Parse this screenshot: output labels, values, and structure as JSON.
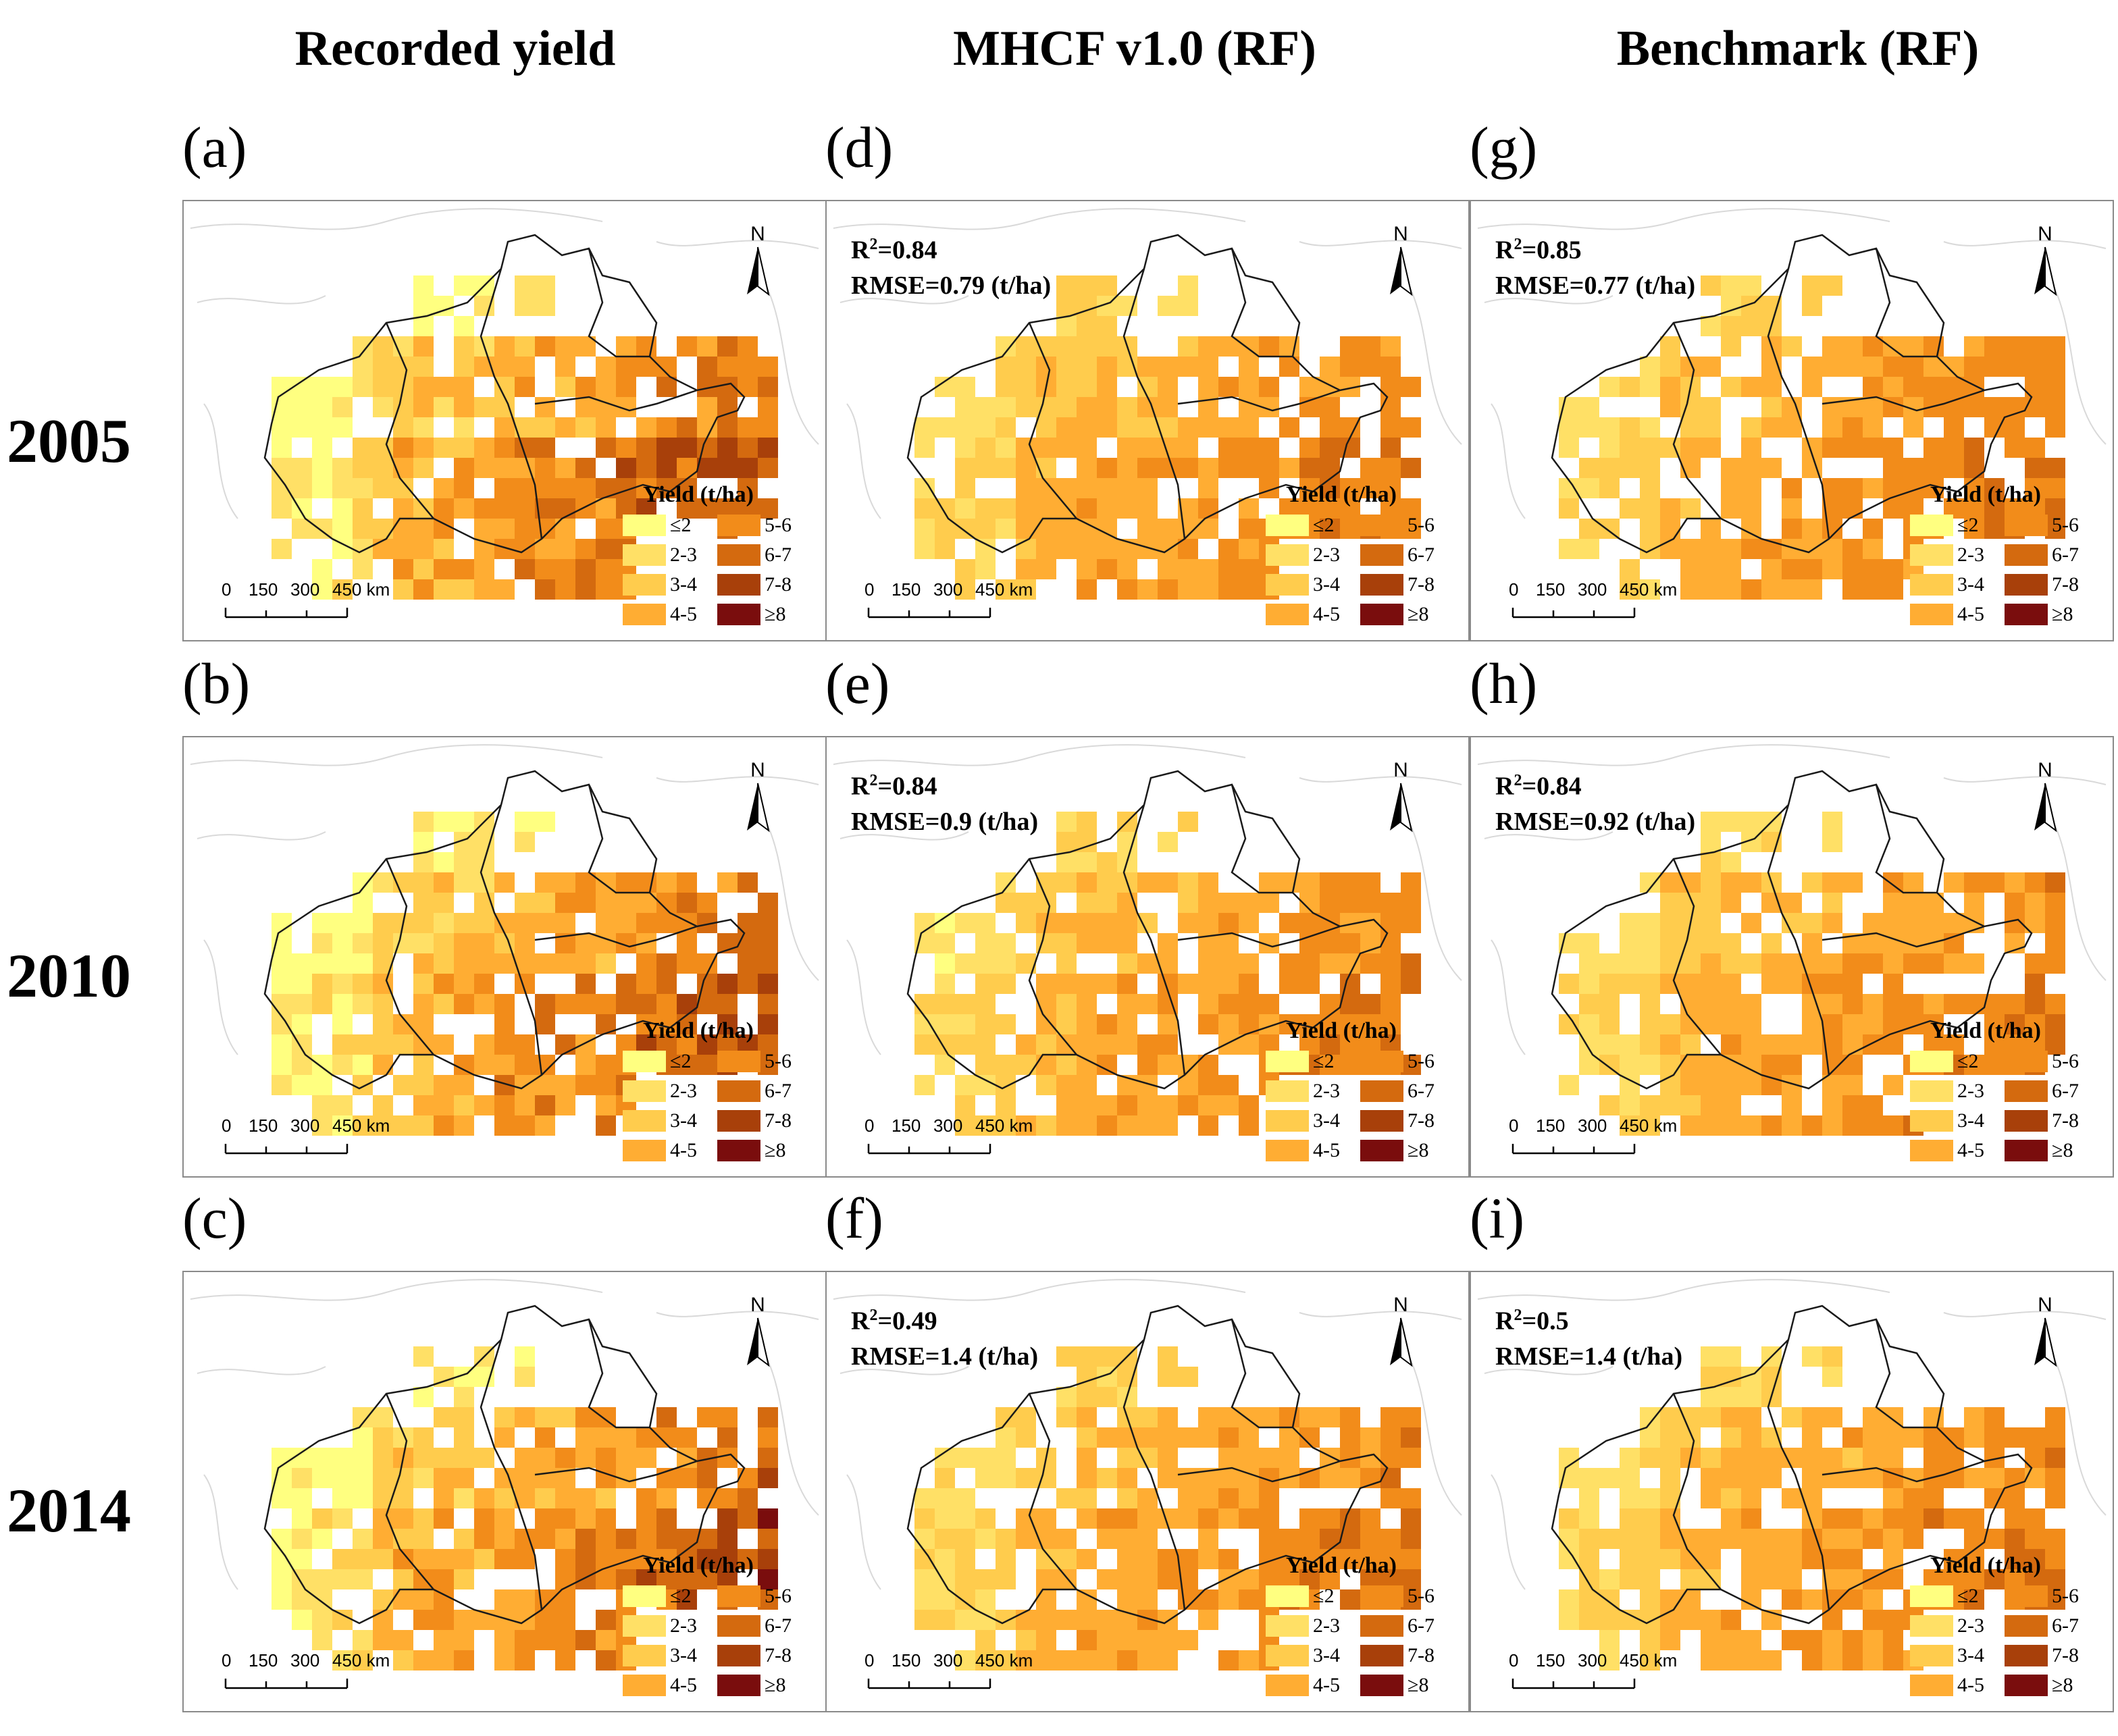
{
  "columns": [
    "Recorded yield",
    "MHCF v1.0 (RF)",
    "Benchmark (RF)"
  ],
  "rows": [
    "2005",
    "2010",
    "2014"
  ],
  "colors": {
    "c1": "#ffff80",
    "c2": "#ffe066",
    "c3": "#ffcc4d",
    "c4": "#ffad33",
    "c5": "#f28c1a",
    "c6": "#d46a0f",
    "c7": "#a8400a",
    "c8": "#7a0d0d",
    "boundary": "#1a1a1a",
    "basemap": "#d9d9d9"
  },
  "legend": {
    "title": "Yield (t/ha)",
    "items": [
      {
        "label": "≤2",
        "color": "#ffff80"
      },
      {
        "label": "5-6",
        "color": "#f28c1a"
      },
      {
        "label": "2-3",
        "color": "#ffe066"
      },
      {
        "label": "6-7",
        "color": "#d46a0f"
      },
      {
        "label": "3-4",
        "color": "#ffcc4d"
      },
      {
        "label": "7-8",
        "color": "#a8400a"
      },
      {
        "label": "4-5",
        "color": "#ffad33"
      },
      {
        "label": "≥8",
        "color": "#7a0d0d"
      }
    ]
  },
  "north_label": "N",
  "scale": {
    "ticks": [
      "0",
      "150",
      "300",
      "450 km"
    ]
  },
  "panels": [
    {
      "id": "a",
      "label": "(a)",
      "r2": null,
      "rmse": null
    },
    {
      "id": "b",
      "label": "(b)",
      "r2": null,
      "rmse": null
    },
    {
      "id": "c",
      "label": "(c)",
      "r2": null,
      "rmse": null
    },
    {
      "id": "d",
      "label": "(d)",
      "r2": "0.84",
      "rmse": "RMSE=0.79 (t/ha)"
    },
    {
      "id": "e",
      "label": "(e)",
      "r2": "0.84",
      "rmse": "RMSE=0.9 (t/ha)"
    },
    {
      "id": "f",
      "label": "(f)",
      "r2": "0.49",
      "rmse": "RMSE=1.4 (t/ha)"
    },
    {
      "id": "g",
      "label": "(g)",
      "r2": "0.85",
      "rmse": "RMSE=0.77 (t/ha)"
    },
    {
      "id": "h",
      "label": "(h)",
      "r2": "0.84",
      "rmse": "RMSE=0.92 (t/ha)"
    },
    {
      "id": "i",
      "label": "(i)",
      "r2": "0.5",
      "rmse": "RMSE=1.4 (t/ha)"
    }
  ],
  "r2_prefix": "R",
  "r2_sup": "2",
  "r2_eq": "="
}
